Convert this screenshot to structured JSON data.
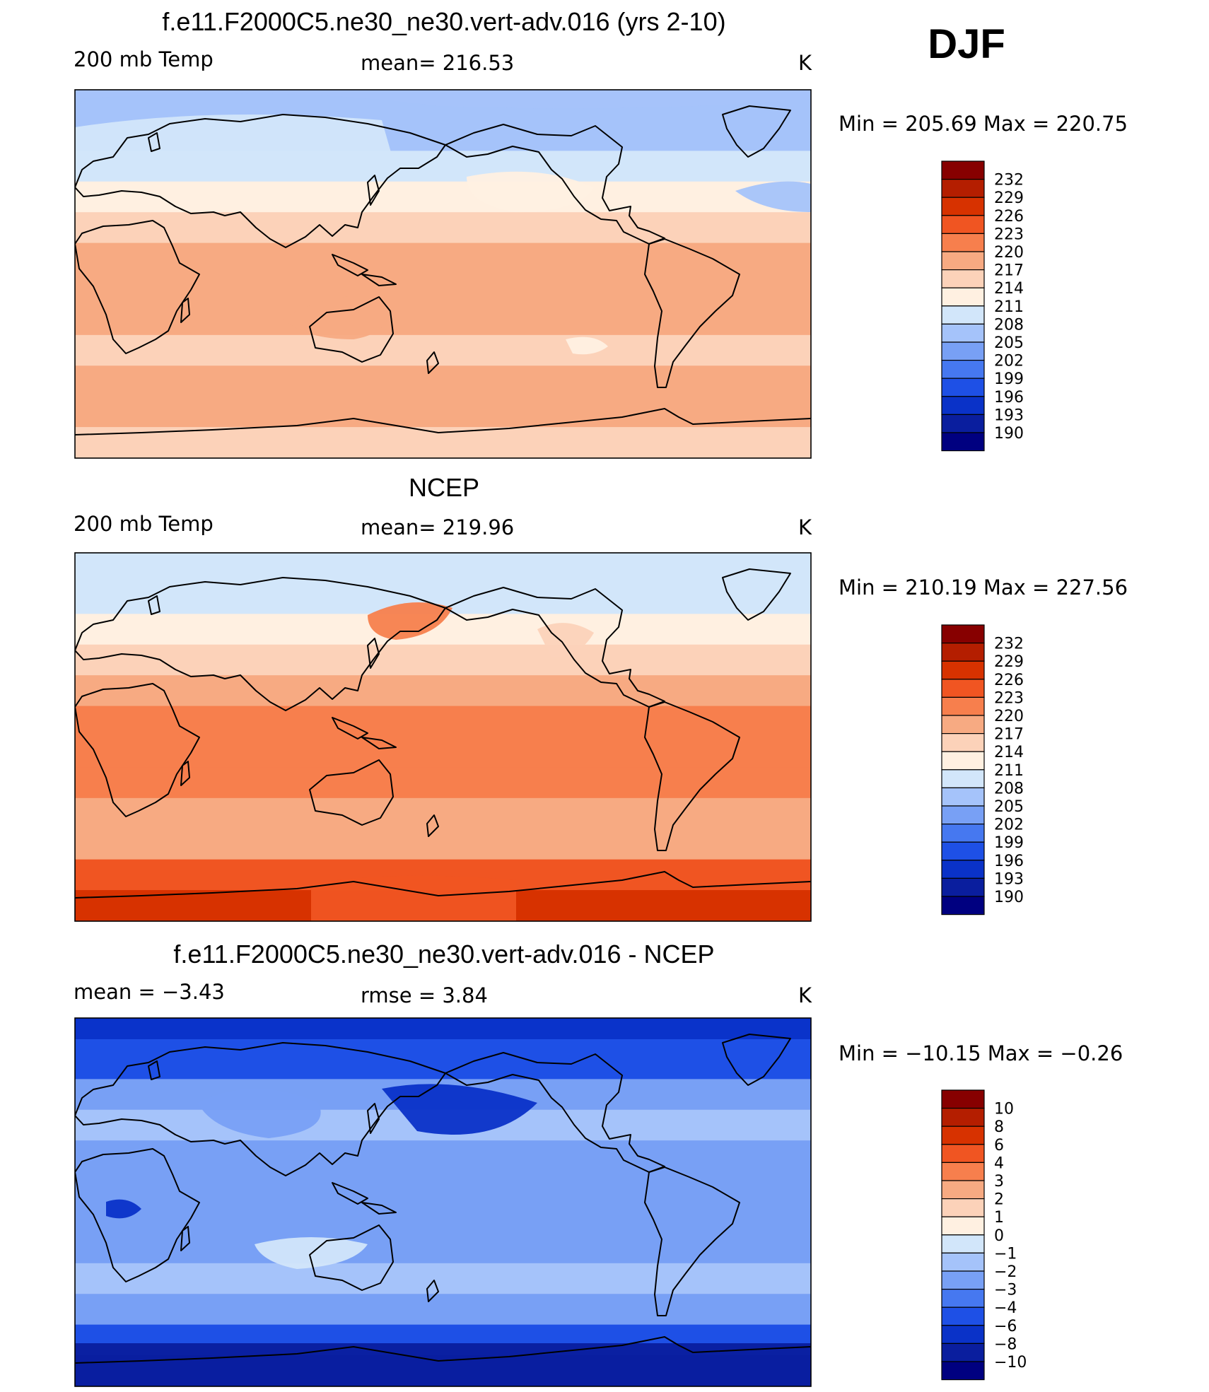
{
  "season": "DJF",
  "palette": {
    "temp": [
      "#000080",
      "#0a1e9e",
      "#0a32c8",
      "#1e50e6",
      "#4678f0",
      "#78a0f5",
      "#a5c3fa",
      "#d2e6fa",
      "#fff0e1",
      "#fcd2b9",
      "#f7aa82",
      "#f77f4d",
      "#f05522",
      "#d73200",
      "#b41e00",
      "#870000"
    ],
    "diff": [
      "#000080",
      "#0a1e9e",
      "#0a32c8",
      "#1e50e6",
      "#4678f0",
      "#78a0f5",
      "#a5c3fa",
      "#d2e6fa",
      "#fff0e1",
      "#fcd2b9",
      "#f7aa82",
      "#f77f4d",
      "#f05522",
      "#d73200",
      "#b41e00",
      "#870000"
    ]
  },
  "panels": [
    {
      "id": "model",
      "title": "f.e11.F2000C5.ne30_ne30.vert-adv.016 (yrs 2-10)",
      "left_label": "200 mb Temp",
      "center_label": "mean=  216.53",
      "units": "K",
      "minmax": "Min  =  205.69  Max  =  220.75",
      "colorbar_labels": [
        "232",
        "229",
        "226",
        "223",
        "220",
        "217",
        "214",
        "211",
        "208",
        "205",
        "202",
        "199",
        "196",
        "193",
        "190"
      ]
    },
    {
      "id": "obs",
      "title": "NCEP",
      "left_label": "200 mb Temp",
      "center_label": "mean=  219.96",
      "units": "K",
      "minmax": "Min  =  210.19  Max  =  227.56",
      "colorbar_labels": [
        "232",
        "229",
        "226",
        "223",
        "220",
        "217",
        "214",
        "211",
        "208",
        "205",
        "202",
        "199",
        "196",
        "193",
        "190"
      ]
    },
    {
      "id": "diff",
      "title": "f.e11.F2000C5.ne30_ne30.vert-adv.016 - NCEP",
      "left_label": "mean =    −3.43",
      "center_label": "rmse =     3.84",
      "units": "K",
      "minmax": "Min  =  −10.15  Max  =    −0.26",
      "colorbar_labels": [
        "10",
        "8",
        "6",
        "4",
        "3",
        "2",
        "1",
        "0",
        "−1",
        "−2",
        "−3",
        "−4",
        "−6",
        "−8",
        "−10"
      ]
    }
  ],
  "chart_data": [
    {
      "type": "heatmap",
      "title": "f.e11.F2000C5.ne30_ne30.vert-adv.016 (yrs 2-10)",
      "variable": "200 mb Temp",
      "units": "K",
      "mean": 216.53,
      "min": 205.69,
      "max": 220.75,
      "contour_levels": [
        190,
        193,
        196,
        199,
        202,
        205,
        208,
        211,
        214,
        217,
        220,
        223,
        226,
        229,
        232
      ],
      "lat": [
        90,
        75,
        60,
        45,
        30,
        15,
        0,
        -15,
        -30,
        -45,
        -60,
        -75,
        -90
      ],
      "zonal_band_levels": [
        206,
        206,
        209,
        212,
        215,
        217,
        218,
        218,
        215,
        217,
        218,
        216,
        216
      ]
    },
    {
      "type": "heatmap",
      "title": "NCEP",
      "variable": "200 mb Temp",
      "units": "K",
      "mean": 219.96,
      "min": 210.19,
      "max": 227.56,
      "contour_levels": [
        190,
        193,
        196,
        199,
        202,
        205,
        208,
        211,
        214,
        217,
        220,
        223,
        226,
        229,
        232
      ],
      "lat": [
        90,
        75,
        60,
        45,
        30,
        15,
        0,
        -15,
        -30,
        -45,
        -60,
        -75,
        -90
      ],
      "zonal_band_levels": [
        210,
        210,
        212,
        215,
        218,
        221,
        221,
        221,
        219,
        219,
        224,
        226,
        226
      ]
    },
    {
      "type": "heatmap",
      "title": "f.e11.F2000C5.ne30_ne30.vert-adv.016 - NCEP",
      "units": "K",
      "mean": -3.43,
      "rmse": 3.84,
      "min": -10.15,
      "max": -0.26,
      "contour_levels": [
        -10,
        -8,
        -6,
        -4,
        -3,
        -2,
        -1,
        0,
        1,
        2,
        3,
        4,
        6,
        8,
        10
      ],
      "lat": [
        90,
        75,
        60,
        45,
        30,
        15,
        0,
        -15,
        -30,
        -45,
        -60,
        -75,
        -90
      ],
      "zonal_band_levels": [
        -5,
        -5,
        -3,
        -2,
        -3,
        -3,
        -3,
        -3,
        -2,
        -3,
        -6,
        -8,
        -9
      ]
    }
  ]
}
